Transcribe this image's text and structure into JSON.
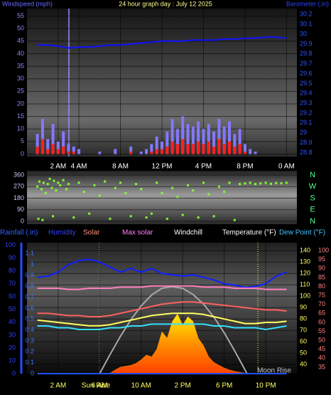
{
  "chart_data": [
    {
      "type": "bar",
      "title": "24 hour graph day : July 12 2025",
      "ylabel": "Windspeed (mph)",
      "y2label": "Barometer (.in)",
      "x": [
        0,
        0.5,
        1,
        1.5,
        2,
        2.5,
        3,
        3.5,
        4,
        4.5,
        5,
        5.5,
        6,
        6.5,
        7,
        7.5,
        8,
        8.5,
        9,
        9.5,
        10,
        10.5,
        11,
        11.5,
        12,
        12.5,
        13,
        13.5,
        14,
        14.5,
        15,
        15.5,
        16,
        16.5,
        17,
        17.5,
        18,
        18.5,
        19,
        19.5,
        20,
        20.5,
        21,
        21.5,
        22,
        22.5,
        23,
        23.5
      ],
      "series": [
        {
          "color": "#8478ff",
          "values": [
            8,
            14,
            6,
            12,
            5,
            9,
            4,
            3,
            2,
            0,
            0,
            0,
            1,
            0,
            0,
            2,
            0,
            0,
            3,
            0,
            1,
            2,
            4,
            7,
            5,
            9,
            14,
            10,
            15,
            12,
            11,
            13,
            10,
            12,
            9,
            14,
            11,
            13,
            8,
            10,
            4,
            2,
            1,
            0,
            0,
            0,
            0,
            0
          ]
        },
        {
          "color": "#ff2020",
          "values": [
            3,
            6,
            2,
            4,
            2,
            3,
            1,
            1,
            0,
            0,
            0,
            0,
            0,
            0,
            0,
            0,
            0,
            0,
            1,
            0,
            0,
            0,
            1,
            2,
            2,
            3,
            5,
            4,
            6,
            4,
            4,
            5,
            4,
            5,
            3,
            6,
            4,
            5,
            3,
            4,
            1,
            0,
            0,
            0,
            0,
            0,
            0,
            0
          ]
        },
        {
          "type": "line",
          "axis": "y2",
          "color": "#1010ff",
          "x": [
            0,
            1,
            2,
            3,
            4,
            5,
            6,
            7,
            8,
            9,
            10,
            11,
            12,
            13,
            14,
            15,
            16,
            17,
            18,
            19,
            20,
            21,
            22,
            23,
            24
          ],
          "values": [
            29.89,
            29.89,
            29.88,
            29.86,
            29.87,
            29.87,
            29.88,
            29.89,
            29.89,
            29.9,
            29.91,
            29.92,
            29.93,
            29.93,
            29.93,
            29.94,
            29.94,
            29.94,
            29.95,
            29.95,
            29.96,
            29.96,
            29.97,
            29.97,
            29.96
          ]
        }
      ],
      "xlim": [
        -1,
        25
      ],
      "xticks": [
        {
          "value": 2,
          "label": "2 AM"
        },
        {
          "value": 4,
          "label": "4 AM"
        },
        {
          "value": 8,
          "label": "8 AM"
        },
        {
          "value": 12,
          "label": "12 PM"
        },
        {
          "value": 16,
          "label": "4 PM"
        },
        {
          "value": 20,
          "label": "8 PM"
        },
        {
          "value": 24,
          "label": "0 AM"
        }
      ],
      "ylim": [
        -1,
        58
      ],
      "yticks": [
        0,
        5,
        10,
        15,
        20,
        25,
        30,
        35,
        40,
        45,
        50,
        55
      ],
      "y2lim": [
        28.76,
        30.26
      ],
      "y2ticks": [
        28.8,
        28.9,
        29,
        29.1,
        29.2,
        29.3,
        29.4,
        29.5,
        29.6,
        29.7,
        29.8,
        29.9,
        30,
        30.1,
        30.2
      ],
      "grid": true
    },
    {
      "type": "scatter",
      "color": "#80ff30",
      "x": [
        0,
        0.2,
        0.4,
        0.6,
        0.8,
        1,
        1.2,
        1.4,
        1.6,
        1.8,
        2,
        2.2,
        2.5,
        2.8,
        3,
        0.1,
        0.5,
        1.5,
        3.5,
        5,
        7,
        9,
        10.5,
        11,
        12.5,
        14,
        15.5,
        17,
        19,
        4,
        4.5,
        5.5,
        6,
        6.5,
        7.5,
        8,
        8.5,
        9.5,
        10,
        11.5,
        12,
        13,
        13.5,
        14.5,
        15,
        16,
        16.5,
        17.5,
        18,
        18.5,
        19.5,
        20,
        20.5,
        21,
        21.5,
        22,
        22.5,
        23,
        23.5,
        24
      ],
      "y": [
        270,
        310,
        250,
        300,
        220,
        290,
        330,
        260,
        315,
        240,
        300,
        280,
        320,
        250,
        290,
        20,
        10,
        40,
        30,
        60,
        20,
        40,
        30,
        60,
        20,
        50,
        30,
        40,
        10,
        300,
        230,
        280,
        200,
        310,
        260,
        300,
        220,
        290,
        250,
        300,
        220,
        260,
        190,
        280,
        240,
        300,
        210,
        270,
        230,
        300,
        290,
        295,
        300,
        290,
        295,
        300,
        292,
        298,
        296,
        300
      ],
      "xlim": [
        -1,
        25
      ],
      "ylim": [
        -22,
        393
      ],
      "yticks": [
        0,
        90,
        180,
        270,
        360
      ],
      "y2lim": [
        -22,
        393
      ],
      "y2ticks": [
        {
          "value": 360,
          "label": "N"
        },
        {
          "value": 270,
          "label": "W"
        },
        {
          "value": 180,
          "label": "S"
        },
        {
          "value": 90,
          "label": "E"
        },
        {
          "value": 0,
          "label": "N"
        }
      ],
      "grid": true
    },
    {
      "type": "line",
      "series": [
        {
          "name": "Rainfall (.in)",
          "color": "#2050ff",
          "label_color": "#3060ff",
          "axis": "y",
          "x": [
            0,
            24
          ],
          "values": [
            0,
            0
          ]
        },
        {
          "name": "Humidity",
          "color": "#1020ff",
          "label_color": "#3040ff",
          "axis": "y2",
          "x": [
            0,
            1,
            2,
            3,
            4,
            5,
            6,
            7,
            8,
            9,
            10,
            11,
            12,
            13,
            14,
            15,
            16,
            17,
            18,
            19,
            20,
            21,
            22,
            23,
            24
          ],
          "values": [
            75,
            76,
            79,
            85,
            88,
            89,
            87,
            83,
            79,
            82,
            79,
            82,
            78,
            77,
            76,
            77,
            75,
            73,
            70,
            69,
            67,
            68,
            70,
            76,
            79
          ]
        },
        {
          "name": "Solar",
          "type": "area",
          "color": "#ff8000",
          "label_color": "#ff9080",
          "axis": "y5",
          "x": [
            7,
            7.5,
            8,
            8.5,
            9,
            9.5,
            10,
            10.5,
            11,
            11.5,
            12,
            12.5,
            13,
            13.5,
            14,
            14.5,
            15,
            15.5,
            16,
            16.5,
            17,
            17.5,
            18,
            18.5,
            19,
            19.5,
            20
          ],
          "values": [
            5,
            40,
            70,
            80,
            90,
            110,
            150,
            200,
            180,
            260,
            450,
            380,
            560,
            640,
            520,
            610,
            560,
            380,
            300,
            180,
            120,
            90,
            60,
            40,
            25,
            15,
            5
          ]
        },
        {
          "name": "Max solar",
          "color": "#a8a8a8",
          "label_color": "#ff80ff",
          "axis": "y5",
          "x": [
            6,
            7,
            8,
            9,
            10,
            11,
            12,
            13,
            14,
            15,
            16,
            17,
            18,
            19,
            20,
            20.2
          ],
          "values": [
            0,
            204,
            399,
            576,
            725,
            841,
            913,
            930,
            912,
            846,
            744,
            605,
            437,
            245,
            41,
            0
          ]
        },
        {
          "name": "Windchill",
          "color": "#ff6060",
          "label_color": "#ffffff",
          "axis": "y3",
          "x": [
            0,
            1,
            2,
            3,
            4,
            5,
            6,
            7,
            8,
            9,
            10,
            11,
            12,
            13,
            14,
            15,
            16,
            17,
            18,
            19,
            20,
            21,
            22,
            23,
            24
          ],
          "values": [
            85,
            85,
            84,
            83,
            83,
            82,
            82,
            83,
            85,
            87,
            89,
            91,
            93,
            94,
            95,
            95,
            94,
            93,
            92,
            91,
            90,
            89,
            88,
            88,
            87
          ]
        },
        {
          "name": "Temperature (°F)",
          "color": "#ffff60",
          "label_color": "#ffffff",
          "axis": "y3",
          "x": [
            0,
            1,
            2,
            3,
            4,
            5,
            6,
            7,
            8,
            9,
            10,
            11,
            12,
            13,
            14,
            15,
            16,
            17,
            18,
            19,
            20,
            21,
            22,
            23,
            24
          ],
          "values": [
            79,
            78,
            77,
            76,
            75,
            74,
            74,
            75,
            77,
            79,
            81,
            83,
            84,
            85,
            85,
            85,
            84,
            82,
            80,
            78,
            76,
            76,
            77,
            77,
            78
          ]
        },
        {
          "name": "Dew Point (°F)",
          "color": "#30e0ff",
          "label_color": "#40c0ff",
          "axis": "y4",
          "x": [
            0,
            1,
            2,
            3,
            4,
            5,
            6,
            7,
            8,
            9,
            10,
            11,
            12,
            13,
            14,
            15,
            16,
            17,
            18,
            19,
            20,
            21,
            22,
            23,
            24
          ],
          "values": [
            58,
            58,
            57,
            57,
            56,
            56,
            56,
            57,
            57,
            58,
            58,
            59,
            59,
            59,
            59,
            59,
            59,
            58,
            58,
            57,
            57,
            57,
            56,
            57,
            58
          ]
        },
        {
          "color": "#ff80c0",
          "axis": "y3",
          "x": [
            0,
            1,
            2,
            3,
            4,
            5,
            6,
            7,
            8,
            9,
            10,
            11,
            12,
            13,
            14,
            15,
            16,
            17,
            18,
            19,
            20,
            21,
            22,
            23,
            24
          ],
          "values": [
            107,
            107,
            107,
            106,
            106,
            107,
            107,
            107,
            108,
            108,
            108,
            109,
            109,
            109,
            109,
            109,
            108,
            108,
            108,
            107,
            107,
            107,
            106,
            106,
            106
          ]
        }
      ],
      "annotations": [
        "Sun Rise",
        "Moon Rise"
      ],
      "xlim": [
        -1,
        25
      ],
      "xticks": [
        {
          "value": 2,
          "label": "2 AM"
        },
        {
          "value": 6,
          "label": "6 AM"
        },
        {
          "value": 10,
          "label": "10 AM"
        },
        {
          "value": 14,
          "label": "2 PM"
        },
        {
          "value": 18,
          "label": "6 PM"
        },
        {
          "value": 22,
          "label": "10 PM"
        }
      ],
      "ylim": [
        0,
        1.2
      ],
      "yticks": [
        0,
        0.1,
        0.2,
        0.3,
        0.4,
        0.5,
        0.6,
        0.7,
        0.8,
        0.9,
        1,
        1.1
      ],
      "y2lim": [
        0,
        102
      ],
      "y2ticks": [
        0,
        10,
        20,
        30,
        40,
        50,
        60,
        70,
        80,
        90,
        100
      ],
      "y3lim": [
        32,
        147
      ],
      "y3ticks": [
        40,
        50,
        60,
        70,
        80,
        90,
        100,
        110,
        120,
        130,
        140
      ],
      "y4lim": [
        31.4,
        104.4
      ],
      "y4ticks": [
        35,
        40,
        45,
        50,
        55,
        60,
        65,
        70,
        75,
        80,
        85,
        90,
        95,
        100
      ],
      "y5lim": [
        0,
        1400
      ],
      "grid": true
    }
  ]
}
